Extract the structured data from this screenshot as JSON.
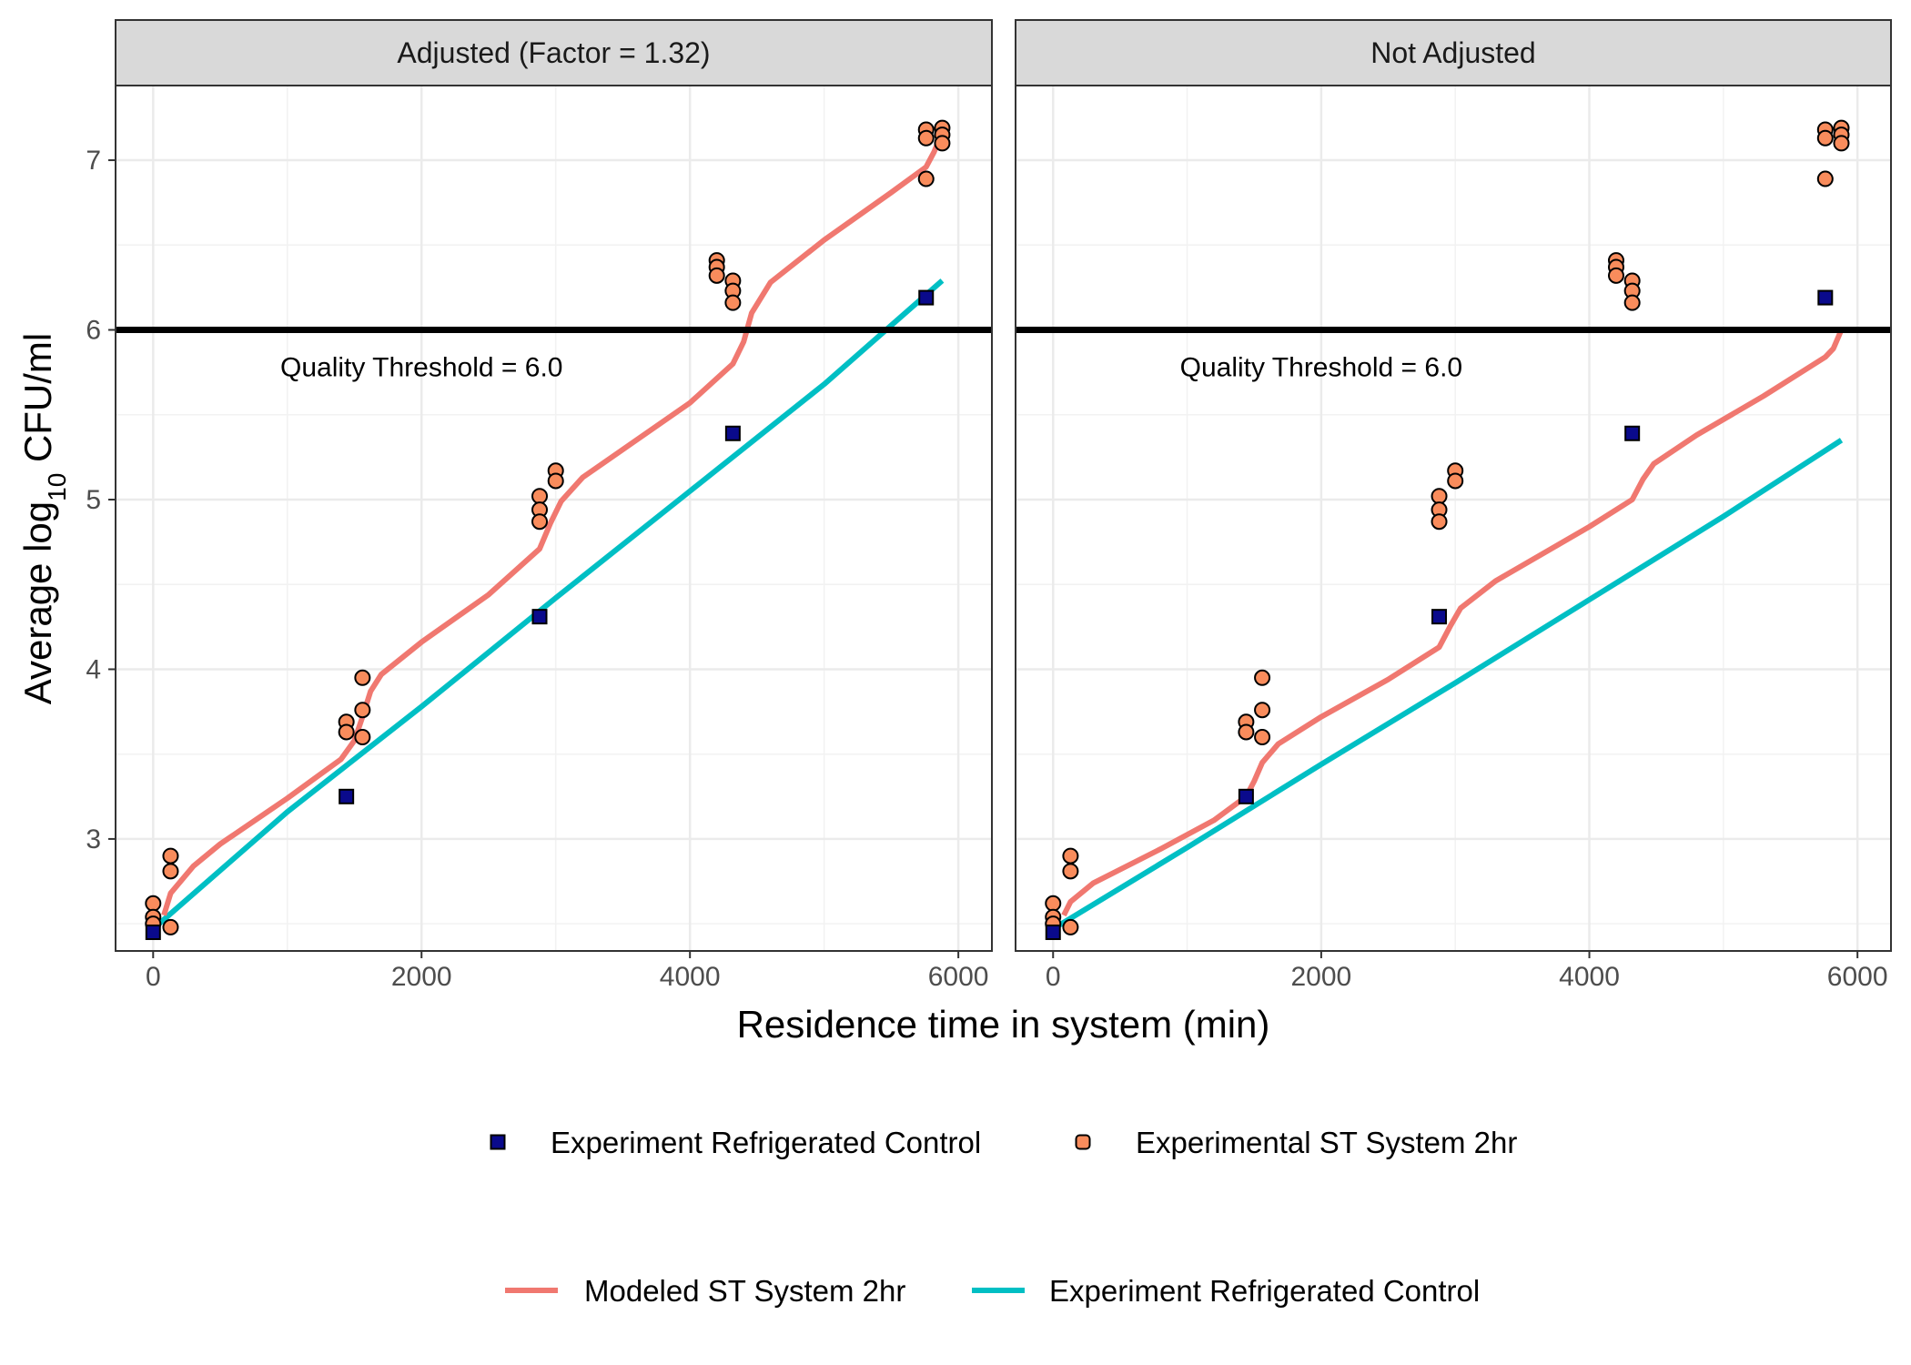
{
  "chart_data": {
    "type": "scatter",
    "xlabel": "Residence time in system (min)",
    "ylabel_parts": {
      "pre": "Average log",
      "sub": "10",
      "post": " CFU/ml"
    },
    "xlim": [
      -280,
      6250
    ],
    "ylim": [
      2.34,
      7.44
    ],
    "x_ticks": [
      0,
      2000,
      4000,
      6000
    ],
    "y_ticks": [
      3,
      4,
      5,
      6,
      7
    ],
    "threshold": {
      "value": 6.0,
      "label": "Quality Threshold = 6.0",
      "label_x": 2000,
      "label_y": 5.78
    },
    "colors": {
      "st_points": "#F98C5C",
      "control_points": "#0A0A8C",
      "modeled_line": "#F07870",
      "control_line": "#00BFC4",
      "threshold": "#000000",
      "strip_bg": "#D9D9D9"
    },
    "panels": [
      {
        "strip_label": "Adjusted (Factor = 1.32)",
        "st_points": [
          [
            0,
            2.62
          ],
          [
            0,
            2.54
          ],
          [
            0,
            2.5
          ],
          [
            130,
            2.9
          ],
          [
            130,
            2.81
          ],
          [
            130,
            2.48
          ],
          [
            1440,
            3.69
          ],
          [
            1440,
            3.63
          ],
          [
            1560,
            3.95
          ],
          [
            1560,
            3.76
          ],
          [
            1560,
            3.6
          ],
          [
            2880,
            5.02
          ],
          [
            2880,
            4.94
          ],
          [
            2880,
            4.87
          ],
          [
            3000,
            5.17
          ],
          [
            3000,
            5.11
          ],
          [
            4200,
            6.41
          ],
          [
            4200,
            6.37
          ],
          [
            4200,
            6.32
          ],
          [
            4320,
            6.29
          ],
          [
            4320,
            6.23
          ],
          [
            4320,
            6.16
          ],
          [
            5760,
            7.18
          ],
          [
            5760,
            7.13
          ],
          [
            5760,
            6.89
          ],
          [
            5880,
            7.19
          ],
          [
            5880,
            7.15
          ],
          [
            5880,
            7.1
          ]
        ],
        "control_points": [
          [
            0,
            2.45
          ],
          [
            1440,
            3.25
          ],
          [
            2880,
            4.31
          ],
          [
            4320,
            5.39
          ],
          [
            5760,
            6.19
          ]
        ],
        "modeled_line": [
          [
            80,
            2.55
          ],
          [
            130,
            2.68
          ],
          [
            300,
            2.84
          ],
          [
            500,
            2.97
          ],
          [
            1000,
            3.24
          ],
          [
            1400,
            3.47
          ],
          [
            1500,
            3.58
          ],
          [
            1560,
            3.72
          ],
          [
            1620,
            3.87
          ],
          [
            1700,
            3.97
          ],
          [
            2000,
            4.16
          ],
          [
            2500,
            4.44
          ],
          [
            2880,
            4.71
          ],
          [
            2960,
            4.86
          ],
          [
            3040,
            4.99
          ],
          [
            3200,
            5.13
          ],
          [
            3600,
            5.35
          ],
          [
            4000,
            5.57
          ],
          [
            4320,
            5.8
          ],
          [
            4400,
            5.93
          ],
          [
            4460,
            6.1
          ],
          [
            4600,
            6.28
          ],
          [
            5000,
            6.53
          ],
          [
            5500,
            6.81
          ],
          [
            5760,
            6.96
          ],
          [
            5820,
            7.05
          ],
          [
            5880,
            7.17
          ]
        ],
        "control_line": [
          [
            0,
            2.47
          ],
          [
            1000,
            3.16
          ],
          [
            2000,
            3.78
          ],
          [
            3000,
            4.42
          ],
          [
            4000,
            5.05
          ],
          [
            5000,
            5.68
          ],
          [
            5880,
            6.29
          ]
        ]
      },
      {
        "strip_label": "Not Adjusted",
        "st_points": [
          [
            0,
            2.62
          ],
          [
            0,
            2.54
          ],
          [
            0,
            2.5
          ],
          [
            130,
            2.9
          ],
          [
            130,
            2.81
          ],
          [
            130,
            2.48
          ],
          [
            1440,
            3.69
          ],
          [
            1440,
            3.63
          ],
          [
            1560,
            3.95
          ],
          [
            1560,
            3.76
          ],
          [
            1560,
            3.6
          ],
          [
            2880,
            5.02
          ],
          [
            2880,
            4.94
          ],
          [
            2880,
            4.87
          ],
          [
            3000,
            5.17
          ],
          [
            3000,
            5.11
          ],
          [
            4200,
            6.41
          ],
          [
            4200,
            6.37
          ],
          [
            4200,
            6.32
          ],
          [
            4320,
            6.29
          ],
          [
            4320,
            6.23
          ],
          [
            4320,
            6.16
          ],
          [
            5760,
            7.18
          ],
          [
            5760,
            7.13
          ],
          [
            5760,
            6.89
          ],
          [
            5880,
            7.19
          ],
          [
            5880,
            7.15
          ],
          [
            5880,
            7.1
          ]
        ],
        "control_points": [
          [
            0,
            2.45
          ],
          [
            1440,
            3.25
          ],
          [
            2880,
            4.31
          ],
          [
            4320,
            5.39
          ],
          [
            5760,
            6.19
          ]
        ],
        "modeled_line": [
          [
            80,
            2.55
          ],
          [
            130,
            2.63
          ],
          [
            300,
            2.74
          ],
          [
            800,
            2.94
          ],
          [
            1200,
            3.11
          ],
          [
            1440,
            3.25
          ],
          [
            1500,
            3.34
          ],
          [
            1560,
            3.45
          ],
          [
            1680,
            3.56
          ],
          [
            2000,
            3.72
          ],
          [
            2500,
            3.94
          ],
          [
            2880,
            4.13
          ],
          [
            2960,
            4.25
          ],
          [
            3040,
            4.36
          ],
          [
            3300,
            4.52
          ],
          [
            4000,
            4.84
          ],
          [
            4320,
            5.0
          ],
          [
            4400,
            5.12
          ],
          [
            4480,
            5.21
          ],
          [
            4800,
            5.38
          ],
          [
            5300,
            5.61
          ],
          [
            5760,
            5.84
          ],
          [
            5820,
            5.89
          ],
          [
            5880,
            6.0
          ]
        ],
        "control_line": [
          [
            0,
            2.47
          ],
          [
            1000,
            2.95
          ],
          [
            2000,
            3.44
          ],
          [
            3000,
            3.92
          ],
          [
            4000,
            4.41
          ],
          [
            5000,
            4.9
          ],
          [
            5880,
            5.35
          ]
        ]
      }
    ],
    "legend": {
      "points": [
        {
          "label": "Experiment Refrigerated Control",
          "color": "#0A0A8C",
          "shape": "square"
        },
        {
          "label": "Experimental ST System 2hr",
          "color": "#F98C5C",
          "shape": "circle"
        }
      ],
      "lines": [
        {
          "label": "Modeled ST System 2hr",
          "color": "#F07870"
        },
        {
          "label": "Experiment Refrigerated Control",
          "color": "#00BFC4"
        }
      ]
    }
  }
}
